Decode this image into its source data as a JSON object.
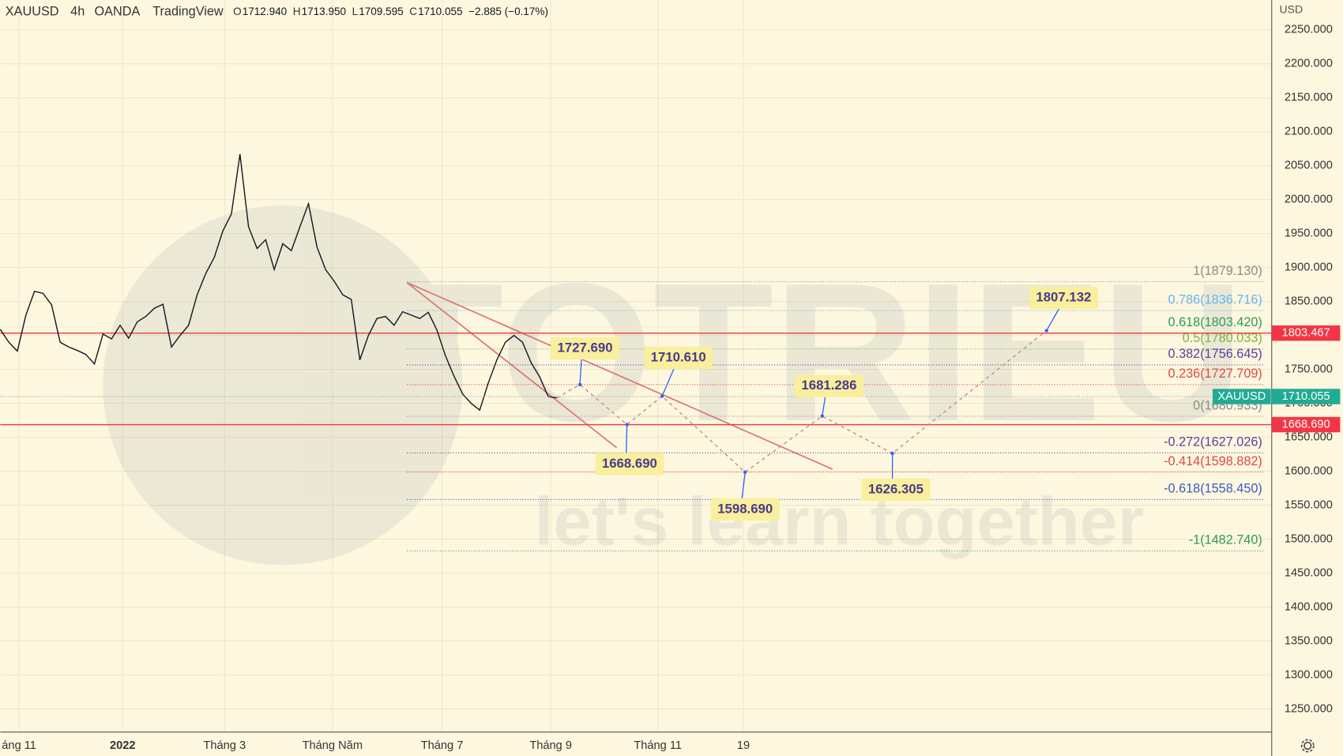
{
  "header": {
    "symbol": "XAUUSD",
    "interval": "4h",
    "broker": "OANDA",
    "platform": "TradingView",
    "ohlc": [
      {
        "key": "O",
        "value": "1712.940"
      },
      {
        "key": "H",
        "value": "1713.950"
      },
      {
        "key": "L",
        "value": "1709.595"
      },
      {
        "key": "C",
        "value": "1710.055"
      }
    ],
    "change": "−2.885 (−0.17%)"
  },
  "chart_data": {
    "type": "line",
    "series": [
      {
        "name": "XAUUSD",
        "color": "#131722",
        "values": [
          1809,
          1790,
          1777,
          1830,
          1865,
          1862,
          1845,
          1790,
          1783,
          1778,
          1772,
          1758,
          1802,
          1795,
          1815,
          1796,
          1820,
          1828,
          1840,
          1846,
          1783,
          1800,
          1815,
          1860,
          1891,
          1915,
          1954,
          1979,
          2067,
          1960,
          1928,
          1941,
          1897,
          1935,
          1925,
          1960,
          1994,
          1930,
          1897,
          1880,
          1860,
          1853,
          1764,
          1800,
          1825,
          1828,
          1815,
          1835,
          1830,
          1825,
          1834,
          1808,
          1770,
          1740,
          1714,
          1700,
          1690,
          1730,
          1764,
          1790,
          1800,
          1790,
          1760,
          1739,
          1710,
          1708
        ]
      }
    ],
    "x_labels": [
      "áng 11",
      "2022",
      "Tháng 3",
      "Tháng Năm",
      "Tháng 7",
      "Tháng 9",
      "Tháng 11",
      "19"
    ],
    "y_unit": "USD",
    "ylim": [
      1216,
      2294
    ],
    "yticks": [
      {
        "value": 1250,
        "label": "1250.000"
      },
      {
        "value": 1300,
        "label": "1300.000"
      },
      {
        "value": 1350,
        "label": "1350.000"
      },
      {
        "value": 1400,
        "label": "1400.000"
      },
      {
        "value": 1450,
        "label": "1450.000"
      },
      {
        "value": 1500,
        "label": "1500.000"
      },
      {
        "value": 1550,
        "label": "1550.000"
      },
      {
        "value": 1600,
        "label": "1600.000"
      },
      {
        "value": 1650,
        "label": "1650.000"
      },
      {
        "value": 1700,
        "label": "1700.000"
      },
      {
        "value": 1750,
        "label": "1750.000"
      },
      {
        "value": 1800,
        "label": "1800.000"
      },
      {
        "value": 1850,
        "label": "1850.000"
      },
      {
        "value": 1900,
        "label": "1900.000"
      },
      {
        "value": 1950,
        "label": "1950.000"
      },
      {
        "value": 2000,
        "label": "2000.000"
      },
      {
        "value": 2050,
        "label": "2050.000"
      },
      {
        "value": 2100,
        "label": "2100.000"
      },
      {
        "value": 2150,
        "label": "2150.000"
      },
      {
        "value": 2200,
        "label": "2200.000"
      },
      {
        "value": 2250,
        "label": "2250.000"
      }
    ],
    "grid": true,
    "fib_levels": [
      {
        "label": "1(1879.130)",
        "value": 1879.13,
        "color": "#8a8a8a"
      },
      {
        "label": "0.786(1836.716)",
        "value": 1836.716,
        "color": "#64b5f6"
      },
      {
        "label": "0.618(1803.420)",
        "value": 1803.42,
        "color": "#2e9a5a"
      },
      {
        "label": "0.5(1780.033)",
        "value": 1780.033,
        "color": "#7cb342"
      },
      {
        "label": "0.382(1756.645)",
        "value": 1756.645,
        "color": "#5b3fa0"
      },
      {
        "label": "0.236(1727.709)",
        "value": 1727.709,
        "color": "#e04848"
      },
      {
        "label": "0(1680.933)",
        "value": 1680.933,
        "color": "#8a8a8a"
      },
      {
        "label": "-0.272(1627.026)",
        "value": 1627.026,
        "color": "#5b3fa0"
      },
      {
        "label": "-0.414(1598.882)",
        "value": 1598.882,
        "color": "#e04848"
      },
      {
        "label": "-0.618(1558.450)",
        "value": 1558.45,
        "color": "#3a5bc4"
      },
      {
        "label": "-1(1482.740)",
        "value": 1482.74,
        "color": "#2e9a5a"
      }
    ],
    "price_lines": [
      {
        "value": 1803.467,
        "label": "1803.467",
        "color": "#f23645"
      },
      {
        "value": 1668.69,
        "label": "1668.690",
        "color": "#f23645"
      }
    ],
    "last_price": {
      "value": 1710.055,
      "label": "1710.055",
      "color": "#22ab94"
    },
    "projection": [
      {
        "value": 1727.69,
        "label": "1727.690"
      },
      {
        "value": 1668.69,
        "label": "1668.690"
      },
      {
        "value": 1710.61,
        "label": "1710.610"
      },
      {
        "value": 1598.69,
        "label": "1598.690"
      },
      {
        "value": 1681.286,
        "label": "1681.286"
      },
      {
        "value": 1626.305,
        "label": "1626.305"
      },
      {
        "value": 1807.132,
        "label": "1807.132"
      }
    ],
    "watermark": [
      "TOTRIEU",
      "let's learn together"
    ]
  }
}
